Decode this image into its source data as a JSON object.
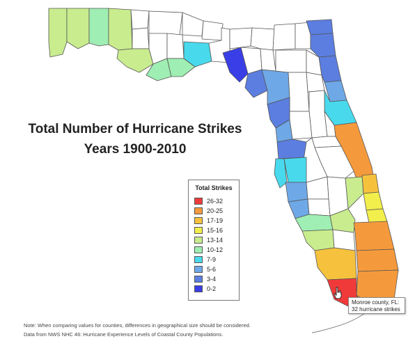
{
  "title_line1": "Total Number of Hurricane Strikes",
  "title_line2": "Years 1900-2010",
  "legend": {
    "title": "Total Strikes",
    "items": [
      {
        "label": "26-32",
        "color": "#f03a3a"
      },
      {
        "label": "20-25",
        "color": "#f59a3c"
      },
      {
        "label": "17-19",
        "color": "#f6c23e"
      },
      {
        "label": "15-16",
        "color": "#f2ee4b"
      },
      {
        "label": "13-14",
        "color": "#c9ec8e"
      },
      {
        "label": "10-12",
        "color": "#9feeb3"
      },
      {
        "label": "7-9",
        "color": "#48d9ec"
      },
      {
        "label": "5-6",
        "color": "#6fa8e6"
      },
      {
        "label": "3-4",
        "color": "#5b7ee0"
      },
      {
        "label": "0-2",
        "color": "#3a3ee6"
      }
    ]
  },
  "tooltip": {
    "line1": "Monroe county, FL:",
    "line2": "32 hurricane strikes"
  },
  "note_line1": "Note: When comparing values for counties, differences in geographical size should be considered.",
  "note_line2": "Data from NWS NHC 46: Hurricane Experience Levels of Coastal County Populations."
}
